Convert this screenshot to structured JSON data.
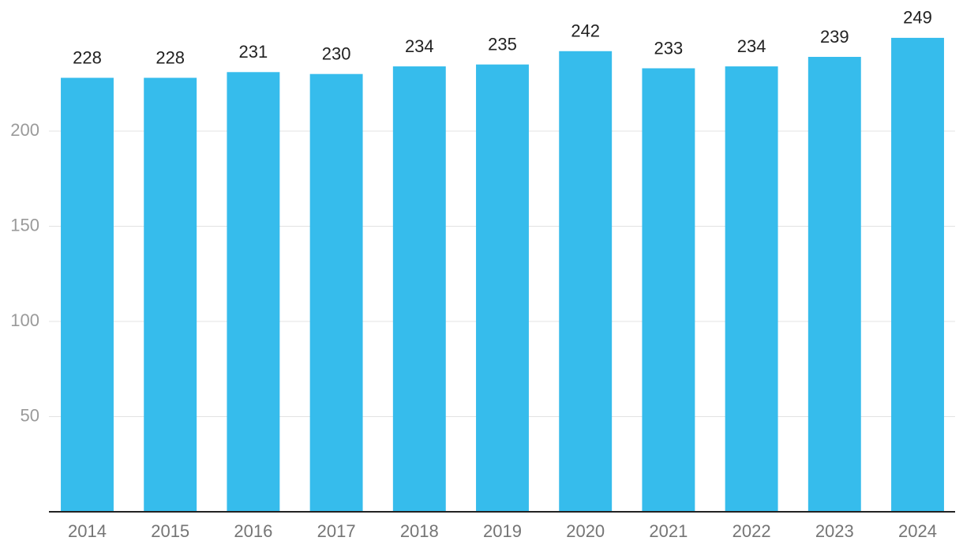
{
  "chart_data": {
    "type": "bar",
    "categories": [
      "2014",
      "2015",
      "2016",
      "2017",
      "2018",
      "2019",
      "2020",
      "2021",
      "2022",
      "2023",
      "2024"
    ],
    "values": [
      228,
      228,
      231,
      230,
      234,
      235,
      242,
      233,
      234,
      239,
      249
    ],
    "color": "#36bcec",
    "ylim": [
      0,
      260
    ],
    "yticks": [
      50,
      100,
      150,
      200
    ],
    "grid": true
  }
}
